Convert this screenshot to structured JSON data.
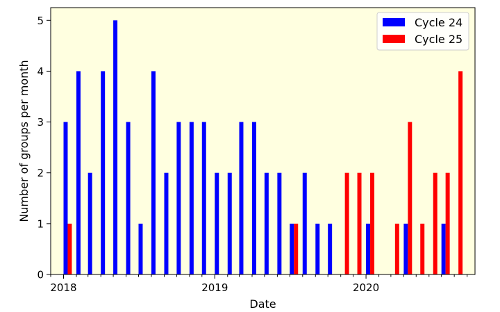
{
  "chart_data": {
    "type": "bar",
    "title": "",
    "xlabel": "Date",
    "ylabel": "Number of groups per month",
    "ylim": [
      0,
      5.25
    ],
    "xlim": [
      "2017-12-01",
      "2020-09-20"
    ],
    "x_tick_labels": [
      "2018",
      "2019",
      "2020"
    ],
    "y_tick_labels": [
      "0",
      "1",
      "2",
      "3",
      "4",
      "5"
    ],
    "background_color": "#ffffe0",
    "legend_position": "upper right",
    "grid": false,
    "series": [
      {
        "name": "Cycle 24",
        "color": "#0000ff",
        "points": [
          {
            "date": "2018-01",
            "value": 3
          },
          {
            "date": "2018-02",
            "value": 4
          },
          {
            "date": "2018-03",
            "value": 2
          },
          {
            "date": "2018-04",
            "value": 4
          },
          {
            "date": "2018-05",
            "value": 5
          },
          {
            "date": "2018-06",
            "value": 3
          },
          {
            "date": "2018-07",
            "value": 1
          },
          {
            "date": "2018-08",
            "value": 4
          },
          {
            "date": "2018-09",
            "value": 2
          },
          {
            "date": "2018-10",
            "value": 3
          },
          {
            "date": "2018-11",
            "value": 3
          },
          {
            "date": "2018-12",
            "value": 3
          },
          {
            "date": "2019-01",
            "value": 2
          },
          {
            "date": "2019-02",
            "value": 2
          },
          {
            "date": "2019-03",
            "value": 3
          },
          {
            "date": "2019-04",
            "value": 3
          },
          {
            "date": "2019-05",
            "value": 2
          },
          {
            "date": "2019-06",
            "value": 2
          },
          {
            "date": "2019-07",
            "value": 1
          },
          {
            "date": "2019-08",
            "value": 2
          },
          {
            "date": "2019-09",
            "value": 1
          },
          {
            "date": "2019-10",
            "value": 1
          },
          {
            "date": "2020-01",
            "value": 1
          },
          {
            "date": "2020-04",
            "value": 1
          },
          {
            "date": "2020-07",
            "value": 1
          }
        ]
      },
      {
        "name": "Cycle 25",
        "color": "#ff0000",
        "points": [
          {
            "date": "2018-01",
            "value": 1
          },
          {
            "date": "2019-07",
            "value": 1
          },
          {
            "date": "2019-11",
            "value": 2
          },
          {
            "date": "2019-12",
            "value": 2
          },
          {
            "date": "2020-01",
            "value": 2
          },
          {
            "date": "2020-03",
            "value": 1
          },
          {
            "date": "2020-04",
            "value": 3
          },
          {
            "date": "2020-05",
            "value": 1
          },
          {
            "date": "2020-06",
            "value": 2
          },
          {
            "date": "2020-07",
            "value": 2
          },
          {
            "date": "2020-08",
            "value": 4
          }
        ]
      }
    ]
  }
}
